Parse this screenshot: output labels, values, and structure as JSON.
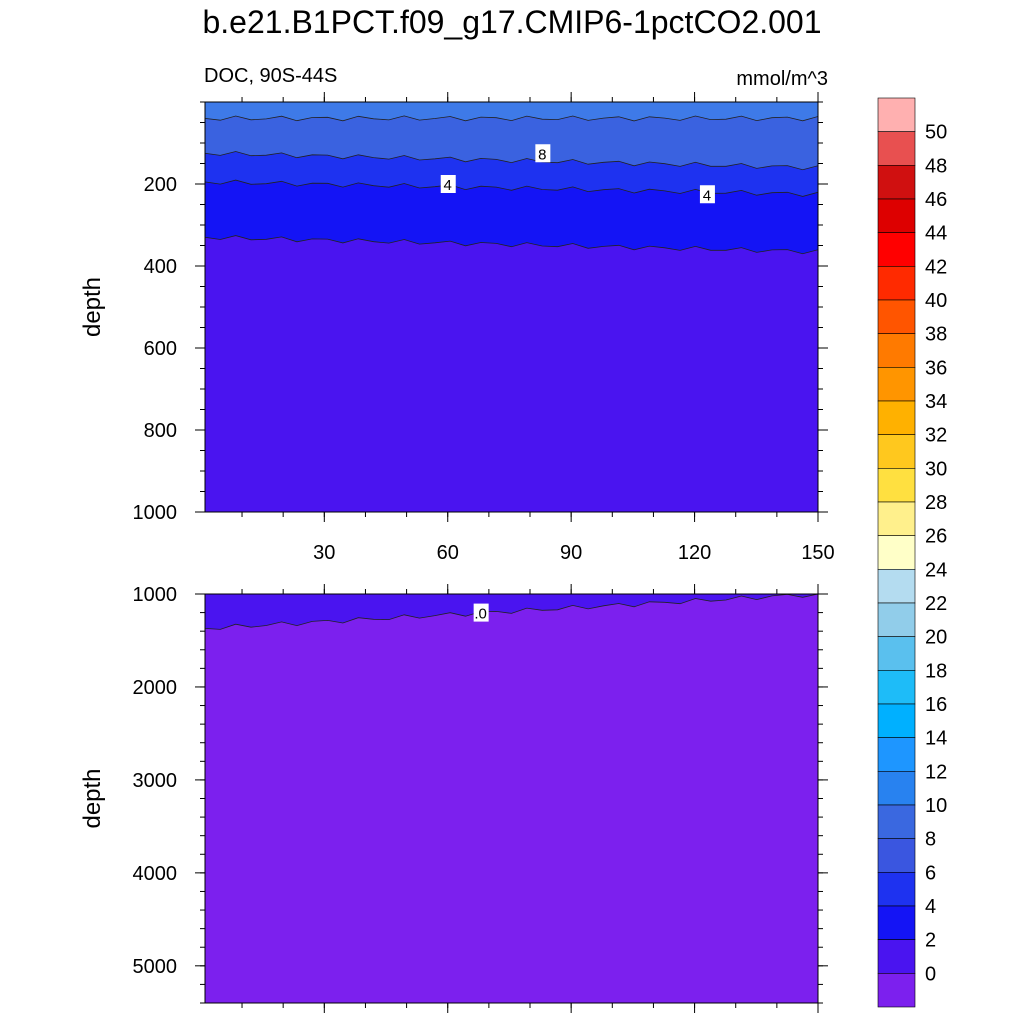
{
  "title": "b.e21.B1PCT.f09_g17.CMIP6-1pctCO2.001",
  "chart_data": {
    "type": "heatmap",
    "subtitle_left": "DOC, 90S-44S",
    "units": "mmol/m^3",
    "x_ticks": [
      "30",
      "60",
      "90",
      "120",
      "150"
    ],
    "x_tick_values": [
      30,
      60,
      90,
      120,
      150
    ],
    "xlim": [
      1,
      150
    ],
    "panels": [
      {
        "name": "upper",
        "ylabel": "depth",
        "ylim": [
          0,
          1000
        ],
        "y_ticks": [
          "200",
          "400",
          "600",
          "800",
          "1000"
        ],
        "y_tick_values": [
          200,
          400,
          600,
          800,
          1000
        ],
        "layers": [
          {
            "level": 10,
            "color": "#3e7ae8",
            "bottom_depth": [
              40,
              40
            ]
          },
          {
            "level": 8,
            "color": "#3a62e0",
            "bottom_depth": [
              125,
              160
            ]
          },
          {
            "level": 6,
            "color": "#1e32f0",
            "bottom_depth": [
              195,
              225
            ]
          },
          {
            "level": 4,
            "color": "#1414f5",
            "bottom_depth": [
              330,
              365
            ]
          },
          {
            "level": 2,
            "color": "#4a14f0",
            "bottom_depth": [
              1000,
              1000
            ]
          }
        ],
        "contour_labels": [
          {
            "text": "8",
            "x": 83,
            "depth": 125
          },
          {
            "text": "4",
            "x": 60,
            "depth": 200
          },
          {
            "text": "4",
            "x": 123,
            "depth": 225
          }
        ]
      },
      {
        "name": "lower",
        "ylabel": "depth",
        "ylim": [
          1000,
          5400
        ],
        "y_ticks": [
          "1000",
          "2000",
          "3000",
          "4000",
          "5000"
        ],
        "y_tick_values": [
          1000,
          2000,
          3000,
          4000,
          5000
        ],
        "layers": [
          {
            "level": 2,
            "color": "#4a14f0",
            "bottom_depth": [
              1370,
              1000
            ]
          },
          {
            "level": 0,
            "color": "#7c20ee",
            "bottom_depth": [
              5400,
              5400
            ]
          }
        ],
        "contour_labels": [
          {
            "text": ".0",
            "x": 68,
            "depth": 1200
          }
        ]
      }
    ],
    "colorbar": {
      "labels": [
        "50",
        "48",
        "46",
        "44",
        "42",
        "40",
        "38",
        "36",
        "34",
        "32",
        "30",
        "28",
        "26",
        "24",
        "22",
        "20",
        "18",
        "16",
        "14",
        "12",
        "10",
        "8",
        "6",
        "4",
        "2",
        "0"
      ],
      "colors": [
        "#ffb0b0",
        "#e85050",
        "#d01010",
        "#dd0000",
        "#ff0000",
        "#ff2a00",
        "#ff5500",
        "#ff7a00",
        "#ff9500",
        "#ffb100",
        "#ffc81e",
        "#ffe040",
        "#fff08c",
        "#ffffc8",
        "#b4dcf0",
        "#91cdea",
        "#5ac0ee",
        "#1ebcf8",
        "#00b0ff",
        "#1e96ff",
        "#2882f0",
        "#3a68e0",
        "#3a56e0",
        "#1e32f0",
        "#1414f5",
        "#4a14f0",
        "#7c20ee"
      ]
    }
  }
}
